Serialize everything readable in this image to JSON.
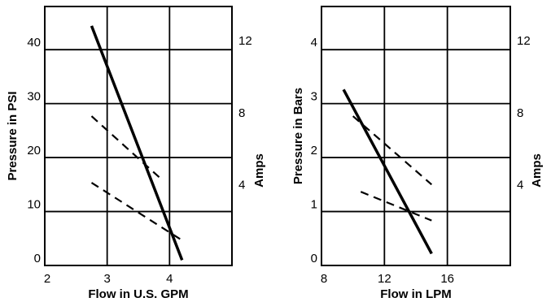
{
  "chart_data": [
    {
      "type": "line",
      "xlabel": "Flow in U.S. GPM",
      "ylabel": "Pressure in PSI",
      "y2label": "Amps",
      "xlim": [
        2,
        5
      ],
      "ylim": [
        0,
        48
      ],
      "xticks": [
        2,
        3,
        4
      ],
      "yticks": [
        0,
        10,
        20,
        30,
        40
      ],
      "y2lim": [
        0,
        14.4
      ],
      "y2ticks": [
        4,
        8,
        12
      ],
      "grid": true,
      "series": [
        {
          "style": "solid",
          "axis": "left",
          "x": [
            2.75,
            4.2
          ],
          "y": [
            44.4,
            1.0
          ]
        },
        {
          "style": "dashed",
          "axis": "right",
          "x": [
            2.75,
            3.9
          ],
          "y": [
            8.3,
            4.7
          ]
        },
        {
          "style": "dashed",
          "axis": "right",
          "x": [
            2.75,
            4.2
          ],
          "y": [
            4.6,
            1.4
          ]
        }
      ]
    },
    {
      "type": "line",
      "xlabel": "Flow in LPM",
      "ylabel": "Pressure in Bars",
      "y2label": "Amps",
      "xlim": [
        8,
        20
      ],
      "ylim": [
        0,
        4.8
      ],
      "xticks": [
        8,
        12,
        16
      ],
      "yticks": [
        0,
        1,
        2,
        3,
        4
      ],
      "y2lim": [
        0,
        14.4
      ],
      "y2ticks": [
        4,
        8,
        12
      ],
      "grid": true,
      "series": [
        {
          "style": "solid",
          "axis": "left",
          "x": [
            9.4,
            15.0
          ],
          "y": [
            3.26,
            0.22
          ]
        },
        {
          "style": "dashed",
          "axis": "right",
          "x": [
            10.0,
            15.0
          ],
          "y": [
            8.3,
            4.5
          ]
        },
        {
          "style": "dashed",
          "axis": "right",
          "x": [
            10.5,
            15.0
          ],
          "y": [
            4.1,
            2.5
          ]
        }
      ]
    }
  ]
}
